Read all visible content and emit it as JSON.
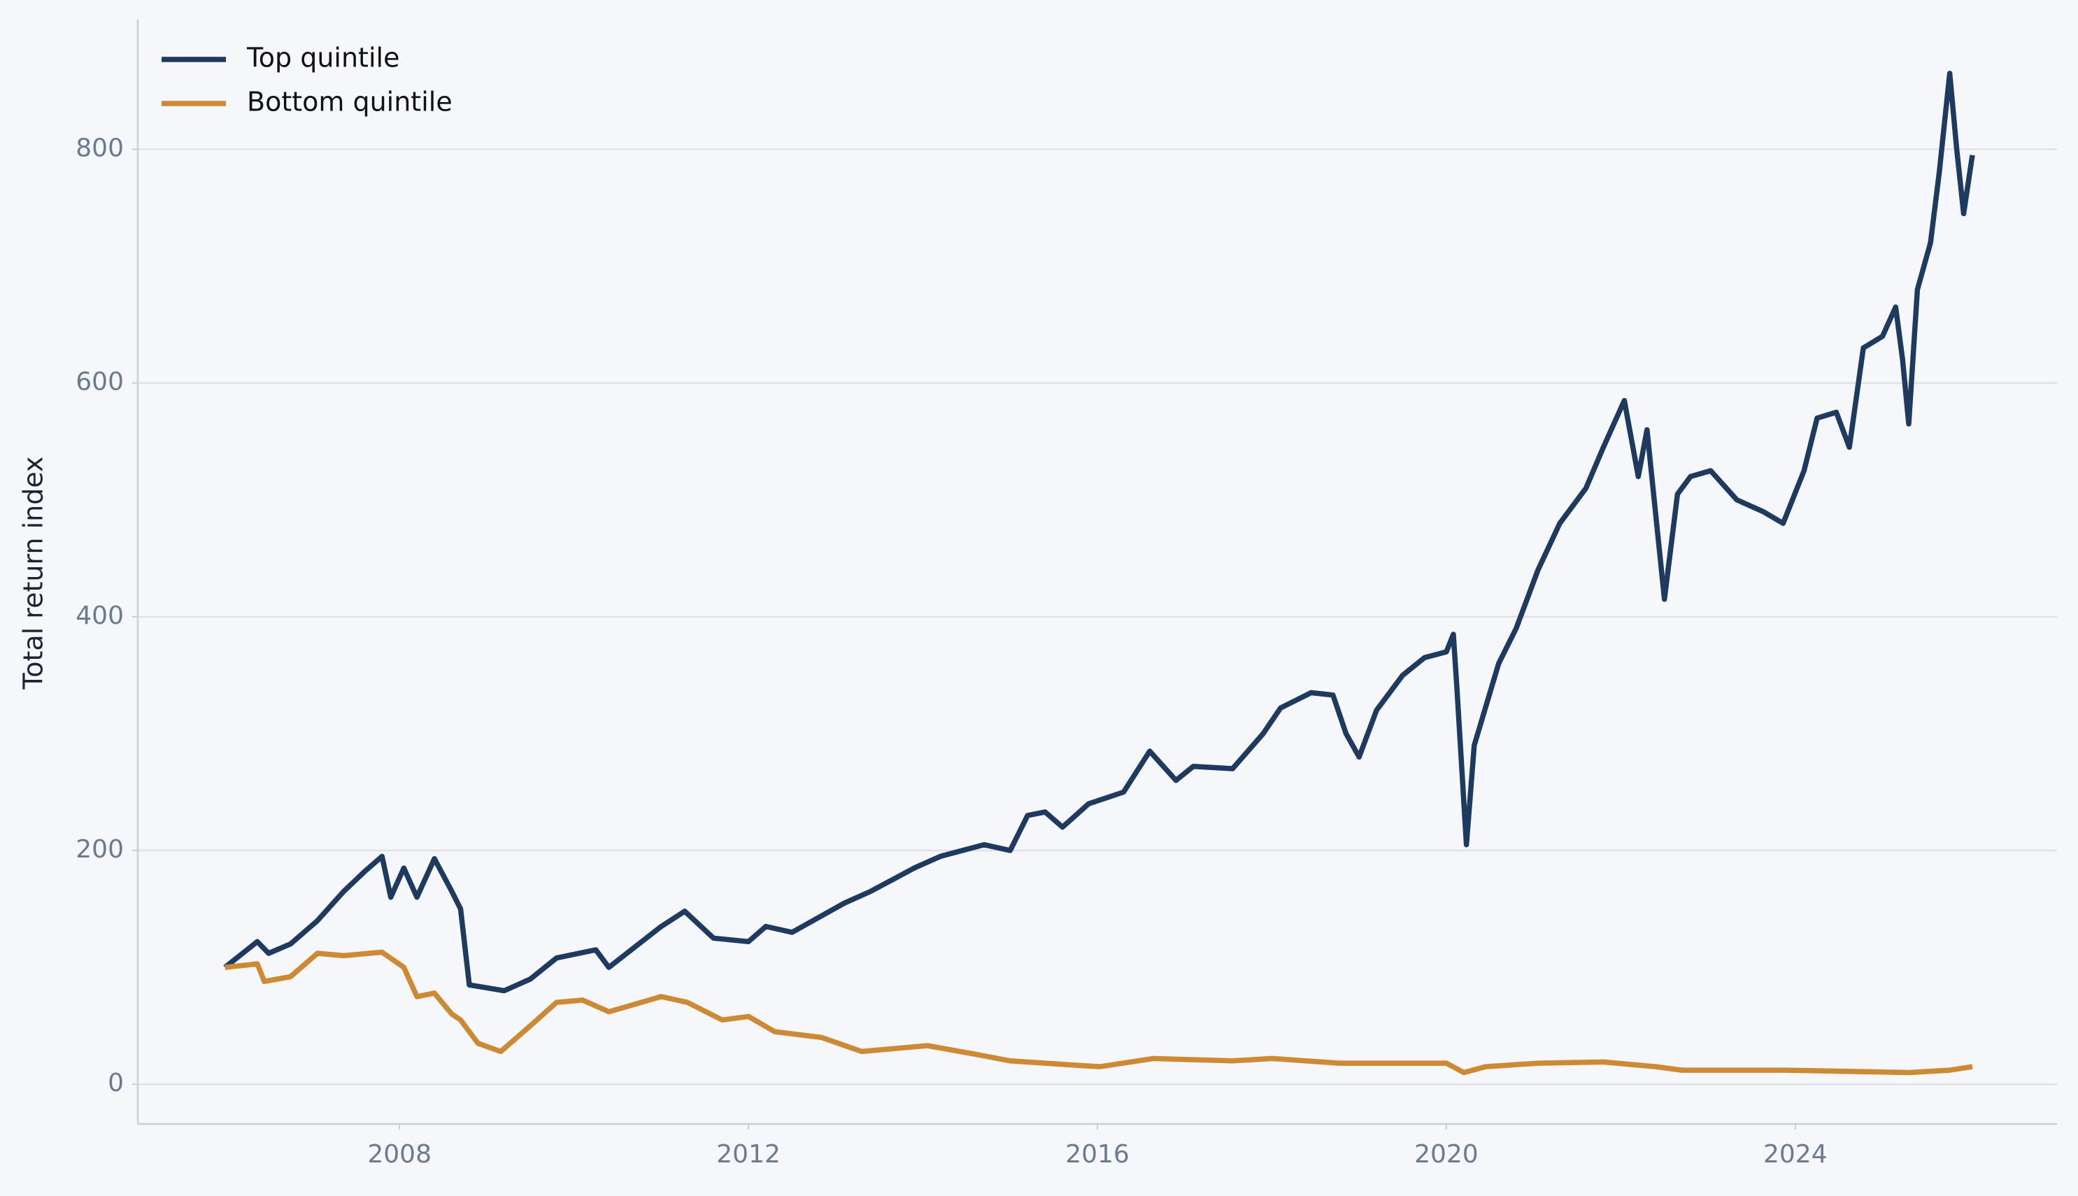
{
  "chart_data": {
    "type": "line",
    "y_label": "Total return index",
    "xlim": [
      2005,
      2027
    ],
    "xticks": [
      2008,
      2012,
      2016,
      2020,
      2024
    ],
    "ylim": [
      -34,
      911
    ],
    "yticks": [
      0,
      200,
      400,
      600,
      800
    ],
    "grid": true,
    "legend": "upper left",
    "series": [
      {
        "name": "Top quintile",
        "color": "#1f3a5f",
        "x": [
          2006.0,
          2006.37,
          2006.5,
          2006.75,
          2007.06,
          2007.36,
          2007.6,
          2007.8,
          2007.9,
          2008.05,
          2008.2,
          2008.4,
          2008.6,
          2008.7,
          2008.8,
          2009.2,
          2009.5,
          2009.8,
          2010.25,
          2010.4,
          2011.0,
          2011.27,
          2011.6,
          2012.0,
          2012.2,
          2012.5,
          2013.1,
          2013.4,
          2013.9,
          2014.2,
          2014.7,
          2015.0,
          2015.2,
          2015.4,
          2015.6,
          2015.9,
          2016.3,
          2016.6,
          2016.9,
          2017.1,
          2017.55,
          2017.9,
          2018.1,
          2018.45,
          2018.7,
          2018.85,
          2019.0,
          2019.2,
          2019.5,
          2019.75,
          2020.0,
          2020.08,
          2020.12,
          2020.23,
          2020.32,
          2020.6,
          2020.8,
          2021.05,
          2021.3,
          2021.6,
          2021.8,
          2022.04,
          2022.2,
          2022.3,
          2022.5,
          2022.65,
          2022.8,
          2023.03,
          2023.33,
          2023.63,
          2023.86,
          2024.1,
          2024.25,
          2024.47,
          2024.62,
          2024.78,
          2025.0,
          2025.15,
          2025.23,
          2025.3,
          2025.4,
          2025.55,
          2025.65,
          2025.77,
          2025.85,
          2025.93,
          2026.03
        ],
        "values": [
          100,
          122,
          112,
          120,
          140,
          165,
          182,
          195,
          160,
          185,
          160,
          193,
          165,
          150,
          85,
          80,
          90,
          108,
          115,
          100,
          135,
          148,
          125,
          122,
          135,
          130,
          155,
          165,
          185,
          195,
          205,
          200,
          230,
          233,
          220,
          240,
          250,
          285,
          260,
          272,
          270,
          300,
          322,
          335,
          333,
          300,
          280,
          320,
          350,
          365,
          370,
          385,
          340,
          205,
          290,
          360,
          390,
          440,
          480,
          510,
          545,
          585,
          520,
          560,
          415,
          505,
          520,
          525,
          500,
          490,
          480,
          525,
          570,
          575,
          545,
          630,
          640,
          665,
          620,
          565,
          680,
          720,
          780,
          865,
          800,
          745,
          795
        ]
      },
      {
        "name": "Bottom quintile",
        "color": "#cc8a35",
        "x": [
          2006.0,
          2006.37,
          2006.45,
          2006.75,
          2007.06,
          2007.36,
          2007.8,
          2008.05,
          2008.2,
          2008.4,
          2008.6,
          2008.7,
          2008.9,
          2009.16,
          2009.5,
          2009.8,
          2010.1,
          2010.4,
          2011.0,
          2011.3,
          2011.7,
          2012.0,
          2012.3,
          2012.84,
          2013.3,
          2014.05,
          2014.65,
          2015.0,
          2015.6,
          2016.03,
          2016.64,
          2017.55,
          2018.0,
          2018.77,
          2020.0,
          2020.2,
          2020.45,
          2021.05,
          2021.8,
          2022.4,
          2022.7,
          2023.9,
          2025.3,
          2025.77,
          2026.03
        ],
        "values": [
          100,
          103,
          88,
          92,
          112,
          110,
          113,
          100,
          75,
          78,
          60,
          55,
          35,
          28,
          50,
          70,
          72,
          62,
          75,
          70,
          55,
          58,
          45,
          40,
          28,
          33,
          25,
          20,
          17,
          15,
          22,
          20,
          22,
          18,
          18,
          10,
          15,
          18,
          19,
          15,
          12,
          12,
          10,
          12,
          15
        ]
      }
    ]
  }
}
